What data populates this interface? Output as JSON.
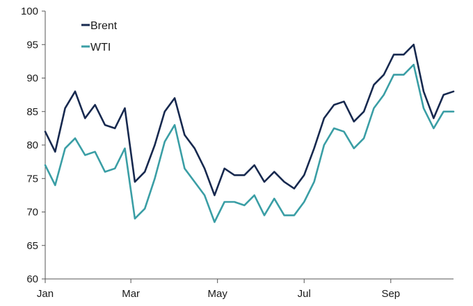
{
  "chart_data": {
    "type": "line",
    "title": "",
    "xlabel": "",
    "ylabel": "",
    "ylim": [
      60,
      100
    ],
    "yticks": [
      60,
      65,
      70,
      75,
      80,
      85,
      90,
      95,
      100
    ],
    "xlim": [
      0,
      41
    ],
    "xticks": [
      {
        "pos": 0,
        "label": "Jan"
      },
      {
        "pos": 8.6,
        "label": "Mar"
      },
      {
        "pos": 17.3,
        "label": "May"
      },
      {
        "pos": 26.0,
        "label": "Jul"
      },
      {
        "pos": 34.7,
        "label": "Sep"
      }
    ],
    "legend_position": "top-left",
    "x": [
      0,
      1,
      2,
      3,
      4,
      5,
      6,
      7,
      8,
      9,
      10,
      11,
      12,
      13,
      14,
      15,
      16,
      17,
      18,
      19,
      20,
      21,
      22,
      23,
      24,
      25,
      26,
      27,
      28,
      29,
      30,
      31,
      32,
      33,
      34,
      35,
      36,
      37,
      38,
      39,
      40,
      41
    ],
    "series": [
      {
        "name": "Brent",
        "color": "#17294f",
        "values": [
          82.0,
          79.0,
          85.5,
          88.0,
          84.0,
          86.0,
          83.0,
          82.5,
          85.5,
          74.5,
          76.0,
          80.0,
          85.0,
          87.0,
          81.5,
          79.5,
          76.5,
          72.5,
          76.5,
          75.5,
          75.5,
          77.0,
          74.5,
          76.0,
          74.5,
          73.5,
          75.5,
          79.5,
          84.0,
          86.0,
          86.5,
          83.5,
          85.0,
          89.0,
          90.5,
          93.5,
          93.5,
          95.0,
          88.0,
          84.0,
          87.5,
          88.0
        ]
      },
      {
        "name": "WTI",
        "color": "#3a9ea5",
        "values": [
          77.0,
          74.0,
          79.5,
          81.0,
          78.5,
          79.0,
          76.0,
          76.5,
          79.5,
          69.0,
          70.5,
          75.0,
          80.5,
          83.0,
          76.5,
          74.5,
          72.5,
          68.5,
          71.5,
          71.5,
          71.0,
          72.5,
          69.5,
          72.0,
          69.5,
          69.5,
          71.5,
          74.5,
          80.0,
          82.5,
          82.0,
          79.5,
          81.0,
          85.5,
          87.5,
          90.5,
          90.5,
          92.0,
          85.5,
          82.5,
          85.0,
          85.0
        ]
      }
    ]
  }
}
